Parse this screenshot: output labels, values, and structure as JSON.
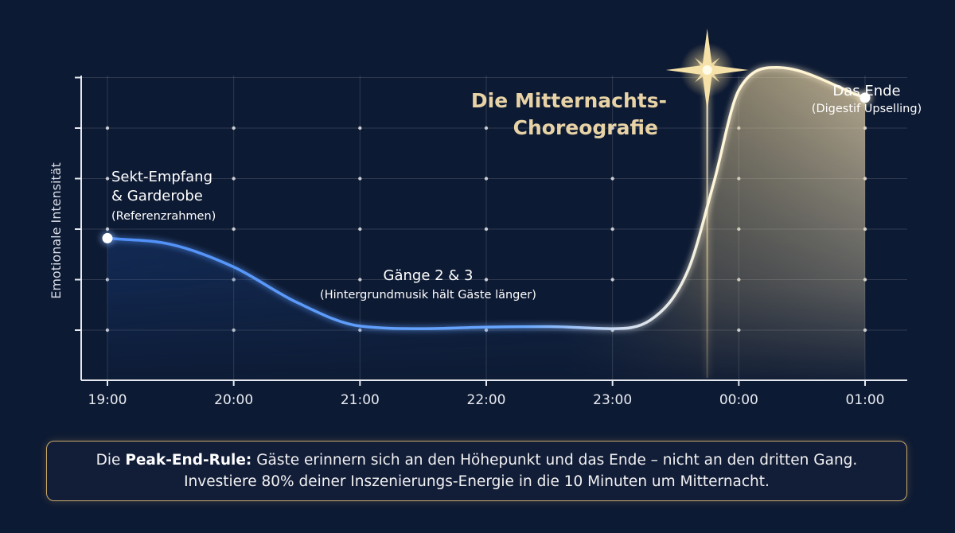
{
  "chart_data": {
    "type": "line",
    "title": "Die Mitternachts-Choreografie",
    "title_lines": [
      "Die Mitternachts-",
      "Choreografie"
    ],
    "xlabel": "",
    "ylabel": "Emotionale Intensität",
    "categories": [
      "19:00",
      "20:00",
      "21:00",
      "22:00",
      "23:00",
      "00:00",
      "01:00"
    ],
    "x": [
      0,
      0.5,
      1,
      1.5,
      2,
      2.5,
      3,
      3.5,
      4,
      4.3,
      4.6,
      4.8,
      5,
      5.3,
      6
    ],
    "y": [
      1.82,
      1.7,
      1.25,
      0.55,
      0.08,
      0.03,
      0.06,
      0.07,
      0.03,
      0.2,
      1.2,
      2.9,
      4.75,
      5.2,
      4.6
    ],
    "ylim": [
      -0.55,
      5.85
    ],
    "y_ticks_count": 5,
    "grid": true,
    "start_point": [
      0,
      1.82
    ],
    "end_point": [
      6,
      4.6
    ],
    "peak_x": 4.75,
    "line_color_start": "#5b9dff",
    "line_color_end": "#fff6d8",
    "annotations": [
      {
        "lines": [
          "Sekt-Empfang",
          "& Garderobe"
        ],
        "sub": "(Referenzrahmen)"
      },
      {
        "lines": [
          "Gänge 2 & 3"
        ],
        "sub": "(Hintergrundmusik hält Gäste länger)"
      },
      {
        "lines": [
          "Das Ende"
        ],
        "sub": "(Digestif Upselling)"
      }
    ]
  },
  "note": {
    "prefix": "Die ",
    "bold": "Peak-End-Rule:",
    "rest": " Gäste erinnern sich an den Höhepunkt und das Ende – nicht an den dritten Gang.",
    "line2": "Investiere 80% deiner Inszenierungs-Energie in die 10 Minuten um Mitternacht."
  },
  "colors": {
    "background": "#0d1a33",
    "accent_gold": "#c9a86a",
    "line_blue": "#5b9dff"
  }
}
